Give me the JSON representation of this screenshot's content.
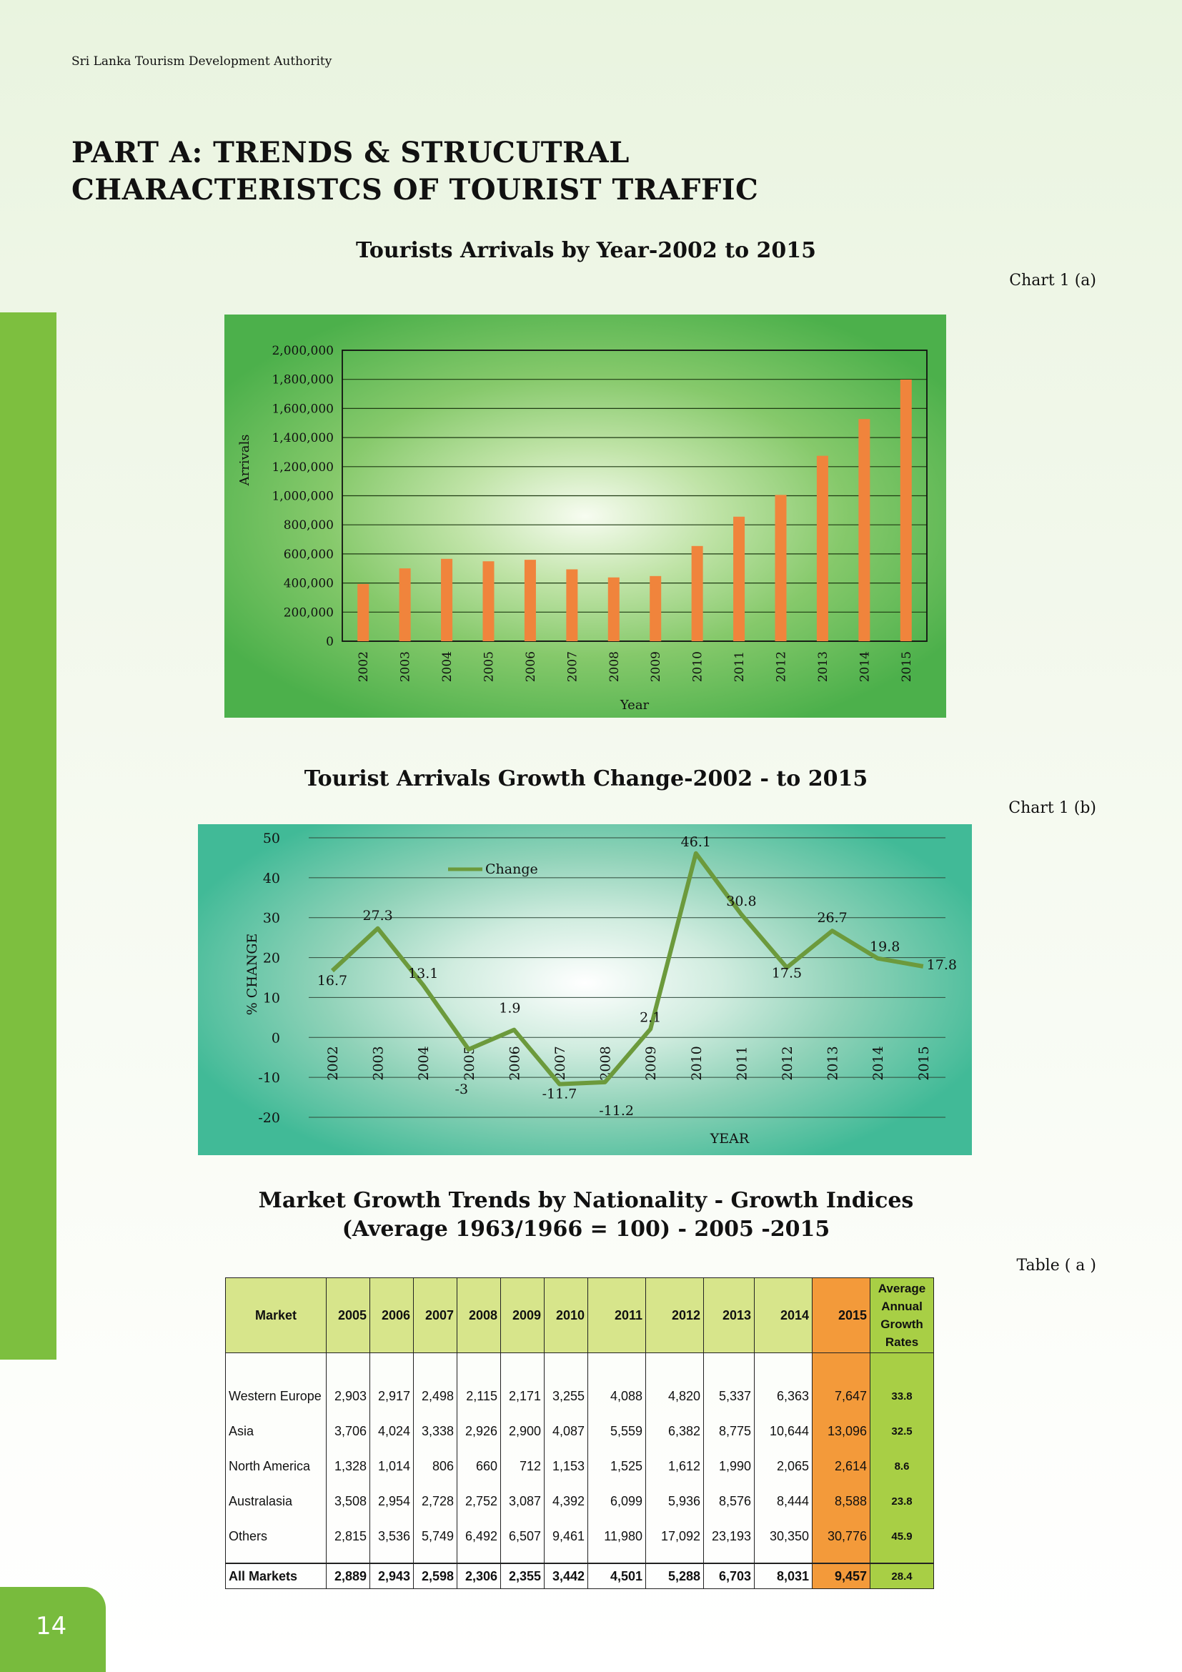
{
  "header": {
    "org": "Sri Lanka Tourism Development Authority",
    "part_title_line1": "PART A: TRENDS & STRUCUTRAL",
    "part_title_line2": "CHARACTERISTCS OF TOURIST TRAFFIC"
  },
  "page_number": "14",
  "chart_data": [
    {
      "type": "bar",
      "title": "Tourists Arrivals by Year-2002 to 2015",
      "label": "Chart 1 (a)",
      "xlabel": "Year",
      "ylabel": "Arrivals",
      "ylim": [
        0,
        2000000
      ],
      "yticks": [
        "0",
        "200,000",
        "400,000",
        "600,000",
        "800,000",
        "1,000,000",
        "1,200,000",
        "1,400,000",
        "1,600,000",
        "1,800,000",
        "2,000,000"
      ],
      "categories": [
        "2002",
        "2003",
        "2004",
        "2005",
        "2006",
        "2007",
        "2008",
        "2009",
        "2010",
        "2011",
        "2012",
        "2013",
        "2014",
        "2015"
      ],
      "values": [
        393171,
        500642,
        566202,
        549308,
        559603,
        494008,
        438475,
        447890,
        654476,
        855975,
        1005605,
        1274593,
        1527153,
        1798380
      ],
      "colors": {
        "bar": "#f0843c"
      },
      "grid": true
    },
    {
      "type": "line",
      "title": "Tourist Arrivals Growth Change-2002 -  to 2015",
      "label": "Chart 1 (b)",
      "xlabel": "YEAR",
      "ylabel": "% CHANGE",
      "ylim": [
        -20,
        50
      ],
      "yticks": [
        "-20",
        "-10",
        "0",
        "10",
        "20",
        "30",
        "40",
        "50"
      ],
      "categories": [
        "2002",
        "2003",
        "2004",
        "2005",
        "2006",
        "2007",
        "2008",
        "2009",
        "2010",
        "2011",
        "2012",
        "2013",
        "2014",
        "2015"
      ],
      "series": [
        {
          "name": "Change",
          "values": [
            16.7,
            27.3,
            13.1,
            -3,
            1.9,
            -11.7,
            -11.2,
            2.1,
            46.1,
            30.8,
            17.5,
            26.7,
            19.8,
            17.8
          ]
        }
      ],
      "data_labels": [
        "16.7",
        "27.3",
        "13.1",
        "-3",
        "1.9",
        "-11.7",
        "-11.2",
        "2.1",
        "46.1",
        "30.8",
        "17.5",
        "26.7",
        "19.8",
        "17.8"
      ],
      "legend": "top-left",
      "colors": {
        "line": "#6c9a3c"
      },
      "grid": true
    }
  ],
  "table": {
    "title_line1": "Market Growth Trends by Nationality - Growth Indices",
    "title_line2": "(Average 1963/1966 = 100) - 2005 -2015",
    "label": "Table ( a )",
    "headers": {
      "market": "Market",
      "years": [
        "2005",
        "2006",
        "2007",
        "2008",
        "2009",
        "2010",
        "2011",
        "2012",
        "2013",
        "2014",
        "2015"
      ],
      "avg_line1": "Average",
      "avg_line2": "Annual",
      "avg_line3": "Growth",
      "avg_line4": "Rates"
    },
    "rows": [
      {
        "market": "Western Europe",
        "values": [
          "2,903",
          "2,917",
          "2,498",
          "2,115",
          "2,171",
          "3,255",
          "4,088",
          "4,820",
          "5,337",
          "6,363",
          "7,647"
        ],
        "avg": "33.8"
      },
      {
        "market": "Asia",
        "values": [
          "3,706",
          "4,024",
          "3,338",
          "2,926",
          "2,900",
          "4,087",
          "5,559",
          "6,382",
          "8,775",
          "10,644",
          "13,096"
        ],
        "avg": "32.5"
      },
      {
        "market": "North America",
        "values": [
          "1,328",
          "1,014",
          "806",
          "660",
          "712",
          "1,153",
          "1,525",
          "1,612",
          "1,990",
          "2,065",
          "2,614"
        ],
        "avg": "8.6"
      },
      {
        "market": "Australasia",
        "values": [
          "3,508",
          "2,954",
          "2,728",
          "2,752",
          "3,087",
          "4,392",
          "6,099",
          "5,936",
          "8,576",
          "8,444",
          "8,588"
        ],
        "avg": "23.8"
      },
      {
        "market": "Others",
        "values": [
          "2,815",
          "3,536",
          "5,749",
          "6,492",
          "6,507",
          "9,461",
          "11,980",
          "17,092",
          "23,193",
          "30,350",
          "30,776"
        ],
        "avg": "45.9"
      }
    ],
    "total": {
      "market": "All Markets",
      "values": [
        "2,889",
        "2,943",
        "2,598",
        "2,306",
        "2,355",
        "3,442",
        "4,501",
        "5,288",
        "6,703",
        "8,031",
        "9,457"
      ],
      "avg": "28.4"
    }
  }
}
